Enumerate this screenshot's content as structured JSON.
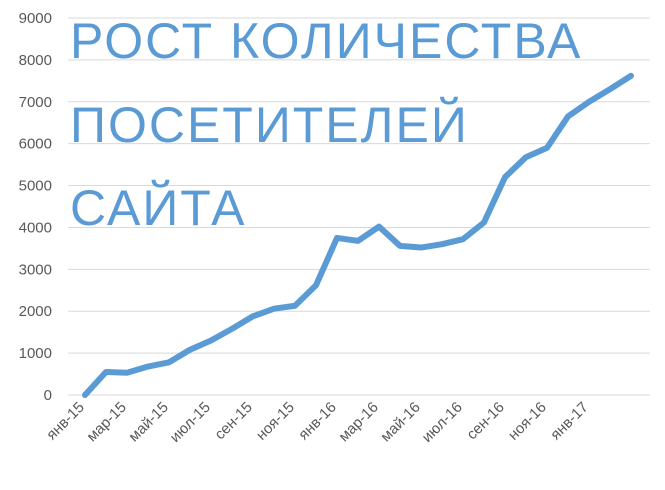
{
  "chart_data": {
    "type": "line",
    "title": [
      "РОСТ  КОЛИЧЕСТВА",
      "ПОСЕТИТЕЛЕЙ",
      "САЙТА"
    ],
    "categories": [
      "янв-15",
      null,
      "мар-15",
      null,
      "май-15",
      null,
      "июл-15",
      null,
      "сен-15",
      null,
      "ноя-15",
      null,
      "янв-16",
      null,
      "мар-16",
      null,
      "май-16",
      null,
      "июл-16",
      null,
      "сен-16",
      null,
      "ноя-16",
      null,
      "янв-17",
      null,
      null
    ],
    "series": [
      {
        "color": "#5b9bd5",
        "values": [
          0,
          550,
          530,
          680,
          780,
          1080,
          1300,
          1580,
          1880,
          2060,
          2130,
          2620,
          3750,
          3680,
          4020,
          3560,
          3520,
          3600,
          3720,
          4120,
          5200,
          5680,
          5900,
          6650,
          7000,
          7300,
          7620
        ]
      }
    ],
    "ylim": [
      0,
      9000
    ],
    "yticks": [
      0,
      1000,
      2000,
      3000,
      4000,
      5000,
      6000,
      7000,
      8000,
      9000
    ],
    "grid": true
  }
}
